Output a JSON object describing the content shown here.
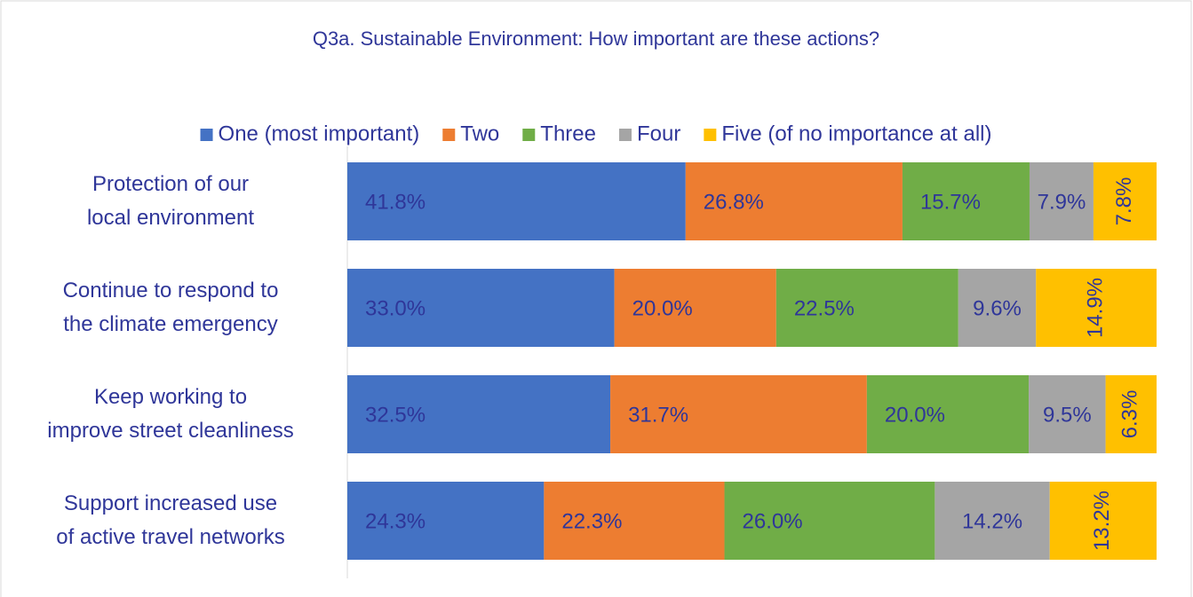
{
  "chart_data": {
    "type": "stacked-bar-horizontal",
    "title": "Q3a. Sustainable Environment: How important are these actions?",
    "categories": [
      "Protection of our\nlocal environment",
      "Continue to respond to\nthe climate emergency",
      "Keep working to\nimprove street cleanliness",
      "Support increased use\nof active travel networks"
    ],
    "xlim": [
      0,
      100
    ],
    "legend": "top",
    "series": [
      {
        "name": "One (most important)",
        "color": "#4472C4",
        "values": [
          41.8,
          33.0,
          32.5,
          24.3
        ],
        "value_labels": [
          "41.8%",
          "33.0%",
          "32.5%",
          "24.3%"
        ]
      },
      {
        "name": "Two",
        "color": "#ED7D31",
        "values": [
          26.8,
          20.0,
          31.7,
          22.3
        ],
        "value_labels": [
          "26.8%",
          "20.0%",
          "31.7%",
          "22.3%"
        ]
      },
      {
        "name": "Three",
        "color": "#70AD47",
        "values": [
          15.7,
          22.5,
          20.0,
          26.0
        ],
        "value_labels": [
          "15.7%",
          "22.5%",
          "20.0%",
          "26.0%"
        ]
      },
      {
        "name": "Four",
        "color": "#A5A5A5",
        "values": [
          7.9,
          9.6,
          9.5,
          14.2
        ],
        "value_labels": [
          "7.9%",
          "9.6%",
          "9.5%",
          "14.2%"
        ]
      },
      {
        "name": "Five (of no importance at all)",
        "color": "#FFC000",
        "values": [
          7.8,
          14.9,
          6.3,
          13.2
        ],
        "value_labels": [
          "7.8%",
          "14.9%",
          "6.3%",
          "13.2%"
        ]
      }
    ]
  }
}
